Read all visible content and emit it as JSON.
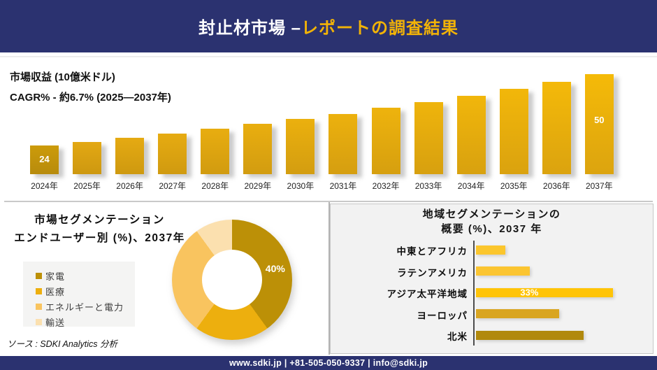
{
  "header": {
    "title_white": "封止材市場 –",
    "title_gold": "レポートの調査結果"
  },
  "colors": {
    "navy": "#2B3270",
    "header_gold": "#F2B307",
    "divider_gray": "#C9C9C9",
    "right_panel_gray": "#F2F2F2",
    "axis_gray": "#4D4D4D"
  },
  "chart_data": [
    {
      "type": "bar",
      "title": "市場収益 (10億米ドル)",
      "subtitle": "CAGR% - 約6.7% (2025―2037年)",
      "categories": [
        "2024年",
        "2025年",
        "2026年",
        "2027年",
        "2028年",
        "2029年",
        "2030年",
        "2031年",
        "2032年",
        "2033年",
        "2034年",
        "2035年",
        "2036年",
        "2037年"
      ],
      "values": [
        24,
        25.4,
        26.9,
        28.4,
        30.1,
        31.8,
        33.7,
        35.6,
        37.7,
        39.9,
        42.2,
        44.6,
        47.2,
        50
      ],
      "value_labels": [
        "24",
        "",
        "",
        "",
        "",
        "",
        "",
        "",
        "",
        "",
        "",
        "",
        "",
        "50"
      ],
      "ylim": [
        0,
        55
      ],
      "first_bar_colors": [
        "#CC9B0A",
        "#B78B0D"
      ],
      "bar_top_colors": [
        "#E3A813",
        "#F5BA08"
      ],
      "bar_bottom_colors": [
        "#CD9810",
        "#DCA40F"
      ]
    },
    {
      "type": "pie",
      "title_line1": "市場セグメンテーション",
      "title_line2": "エンドユーザー別 (%)、2037年",
      "segments": [
        {
          "label": "家電",
          "value": 40,
          "data_label": "40%",
          "color": "#BC9007"
        },
        {
          "label": "医療",
          "value": 20,
          "data_label": "",
          "color": "#EDAF0E"
        },
        {
          "label": "エネルギーと電力",
          "value": 30,
          "data_label": "",
          "color": "#F9C45F"
        },
        {
          "label": "輸送",
          "value": 10,
          "data_label": "",
          "color": "#FBE0AF"
        }
      ]
    },
    {
      "type": "hbar",
      "title_line1": "地域セグメンテーションの",
      "title_line2": "概要 (%)、2037 年",
      "categories": [
        "中東とアフリカ",
        "ラテンアメリカ",
        "アジア太平洋地域",
        "ヨーロッパ",
        "北米"
      ],
      "values": [
        7,
        13,
        33,
        20,
        26
      ],
      "value_labels": [
        "",
        "",
        "33%",
        "",
        ""
      ],
      "colors": [
        "#FBC62D",
        "#FBC531",
        "#FFC408",
        "#D9A521",
        "#B1890D"
      ]
    }
  ],
  "source": "ソース : SDKI Analytics 分析",
  "footer": {
    "text": "www.sdki.jp | +81-505-050-9337 | info@sdki.jp"
  }
}
